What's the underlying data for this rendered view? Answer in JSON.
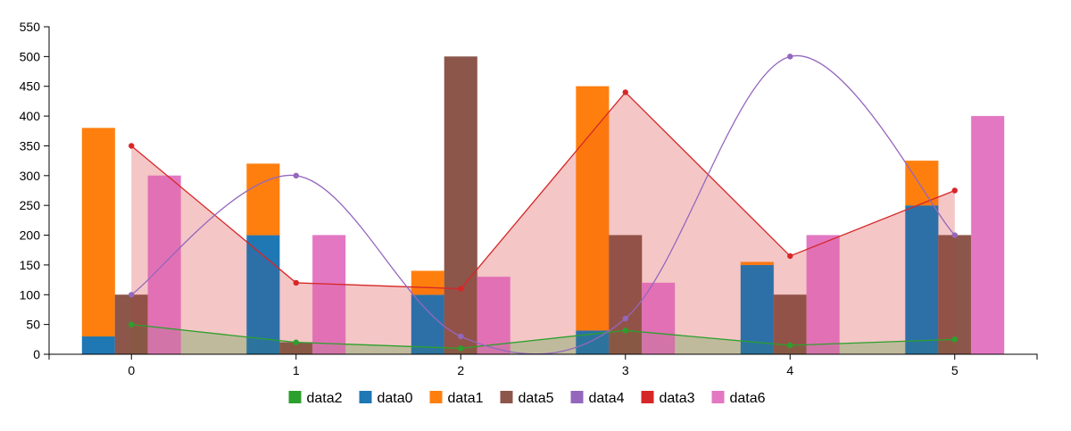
{
  "chart_data": {
    "type": "bar",
    "x": [
      0,
      1,
      2,
      3,
      4,
      5
    ],
    "ylim": [
      0,
      550
    ],
    "y_ticks": [
      0,
      50,
      100,
      150,
      200,
      250,
      300,
      350,
      400,
      450,
      500,
      550
    ],
    "grid": false,
    "legend_position": "bottom",
    "stacked_groups": [
      [
        "data0",
        "data1"
      ]
    ],
    "series": [
      {
        "name": "data2",
        "type": "area-line",
        "color": "#2ca02c",
        "values": [
          50,
          20,
          10,
          40,
          15,
          25
        ]
      },
      {
        "name": "data0",
        "type": "bar",
        "stack": "s1",
        "color": "#1f77b4",
        "values": [
          30,
          200,
          100,
          40,
          150,
          250
        ]
      },
      {
        "name": "data1",
        "type": "bar",
        "stack": "s1",
        "color": "#ff7f0e",
        "values": [
          350,
          120,
          40,
          410,
          5,
          75
        ]
      },
      {
        "name": "data5",
        "type": "bar",
        "color": "#8c564b",
        "values": [
          100,
          20,
          500,
          200,
          100,
          200
        ]
      },
      {
        "name": "data4",
        "type": "spline",
        "color": "#9467bd",
        "values": [
          100,
          300,
          30,
          60,
          500,
          200
        ]
      },
      {
        "name": "data3",
        "type": "area-line",
        "color": "#d62728",
        "values": [
          350,
          120,
          110,
          440,
          165,
          275
        ]
      },
      {
        "name": "data6",
        "type": "bar",
        "color": "#e377c2",
        "values": [
          300,
          200,
          130,
          120,
          200,
          400
        ]
      }
    ],
    "legend": [
      "data2",
      "data0",
      "data1",
      "data5",
      "data4",
      "data3",
      "data6"
    ]
  }
}
